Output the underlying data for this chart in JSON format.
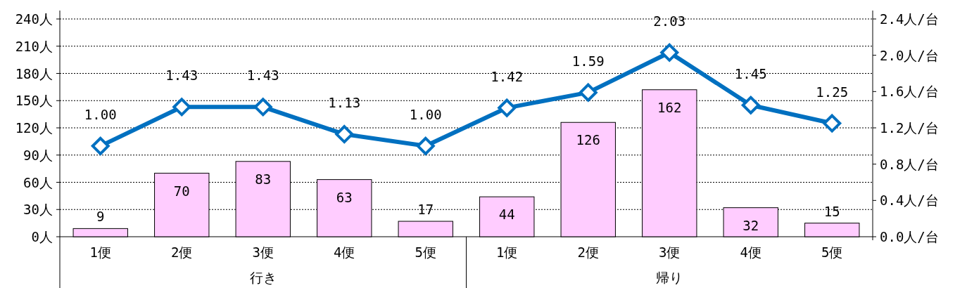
{
  "chart_data": {
    "type": "bar",
    "categories": [
      "1便",
      "2便",
      "3便",
      "4便",
      "5便",
      "1便",
      "2便",
      "3便",
      "4便",
      "5便"
    ],
    "ylim": [
      0,
      240
    ],
    "yticks": [
      {
        "value": 0,
        "label": "0人"
      },
      {
        "value": 30,
        "label": "30人"
      },
      {
        "value": 60,
        "label": "60人"
      },
      {
        "value": 90,
        "label": "90人"
      },
      {
        "value": 120,
        "label": "120人"
      },
      {
        "value": 150,
        "label": "150人"
      },
      {
        "value": 180,
        "label": "180人"
      },
      {
        "value": 210,
        "label": "210人"
      },
      {
        "value": 240,
        "label": "240人"
      }
    ],
    "y2lim": [
      0,
      2.4
    ],
    "y2ticks": [
      {
        "value": 0,
        "label": "0.0人/台"
      },
      {
        "value": 0.4,
        "label": "0.4人/台"
      },
      {
        "value": 0.8,
        "label": "0.8人/台"
      },
      {
        "value": 1.2,
        "label": "1.2人/台"
      },
      {
        "value": 1.6,
        "label": "1.6人/台"
      },
      {
        "value": 2.0,
        "label": "2.0人/台"
      },
      {
        "value": 2.4,
        "label": "2.4人/台"
      }
    ],
    "grid": "y",
    "data_labels": true,
    "series": [
      {
        "color": "#ffccff",
        "values": [
          9,
          70,
          83,
          63,
          17,
          44,
          126,
          162,
          32,
          15
        ]
      },
      {
        "type": "line",
        "axis": "y2",
        "color": "#0070c0",
        "marker": "diamond",
        "values": [
          1.0,
          1.43,
          1.43,
          1.13,
          1.0,
          1.42,
          1.59,
          2.03,
          1.45,
          1.25
        ],
        "value_labels": [
          "1.00",
          "1.43",
          "1.43",
          "1.13",
          "1.00",
          "1.42",
          "1.59",
          "2.03",
          "1.45",
          "1.25"
        ]
      }
    ],
    "annotations": [
      "行き",
      "帰り"
    ]
  }
}
